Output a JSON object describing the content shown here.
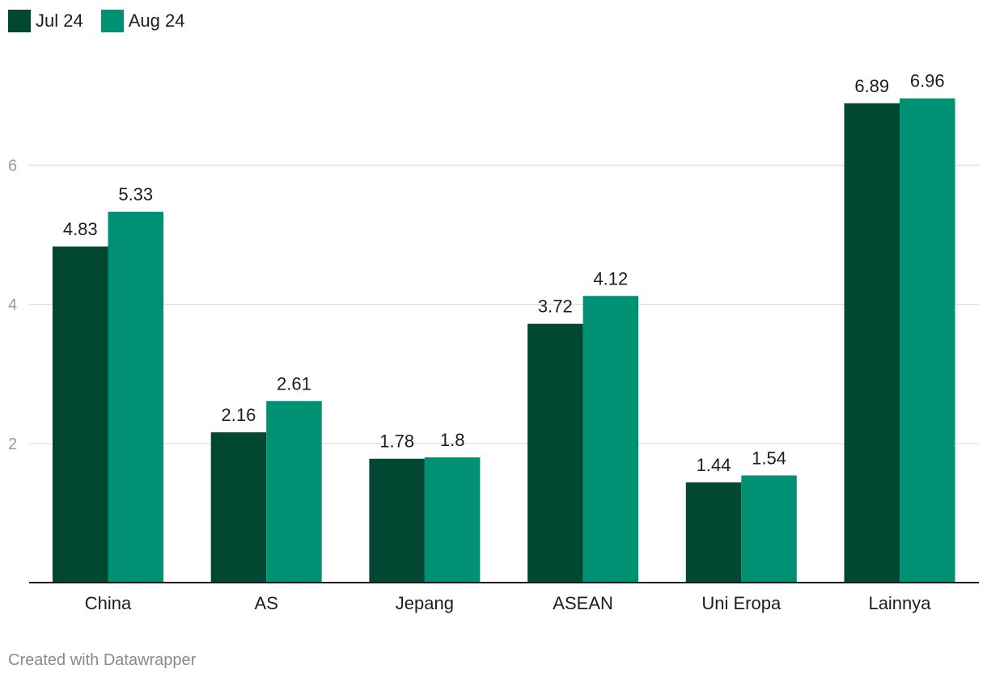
{
  "chart_data": {
    "type": "bar",
    "categories": [
      "China",
      "AS",
      "Jepang",
      "ASEAN",
      "Uni Eropa",
      "Lainnya"
    ],
    "series": [
      {
        "name": "Jul 24",
        "values": [
          4.83,
          2.16,
          1.78,
          3.72,
          1.44,
          6.89
        ]
      },
      {
        "name": "Aug 24",
        "values": [
          5.33,
          2.61,
          1.8,
          4.12,
          1.54,
          6.96
        ]
      }
    ],
    "series_colors": [
      "#024731",
      "#009073"
    ],
    "y_ticks": [
      2,
      4,
      6
    ],
    "ylim": [
      0,
      7.5
    ],
    "grid": true,
    "legend": "top-left",
    "xlabel": "",
    "ylabel": ""
  },
  "footer": {
    "credit": "Created with Datawrapper"
  }
}
